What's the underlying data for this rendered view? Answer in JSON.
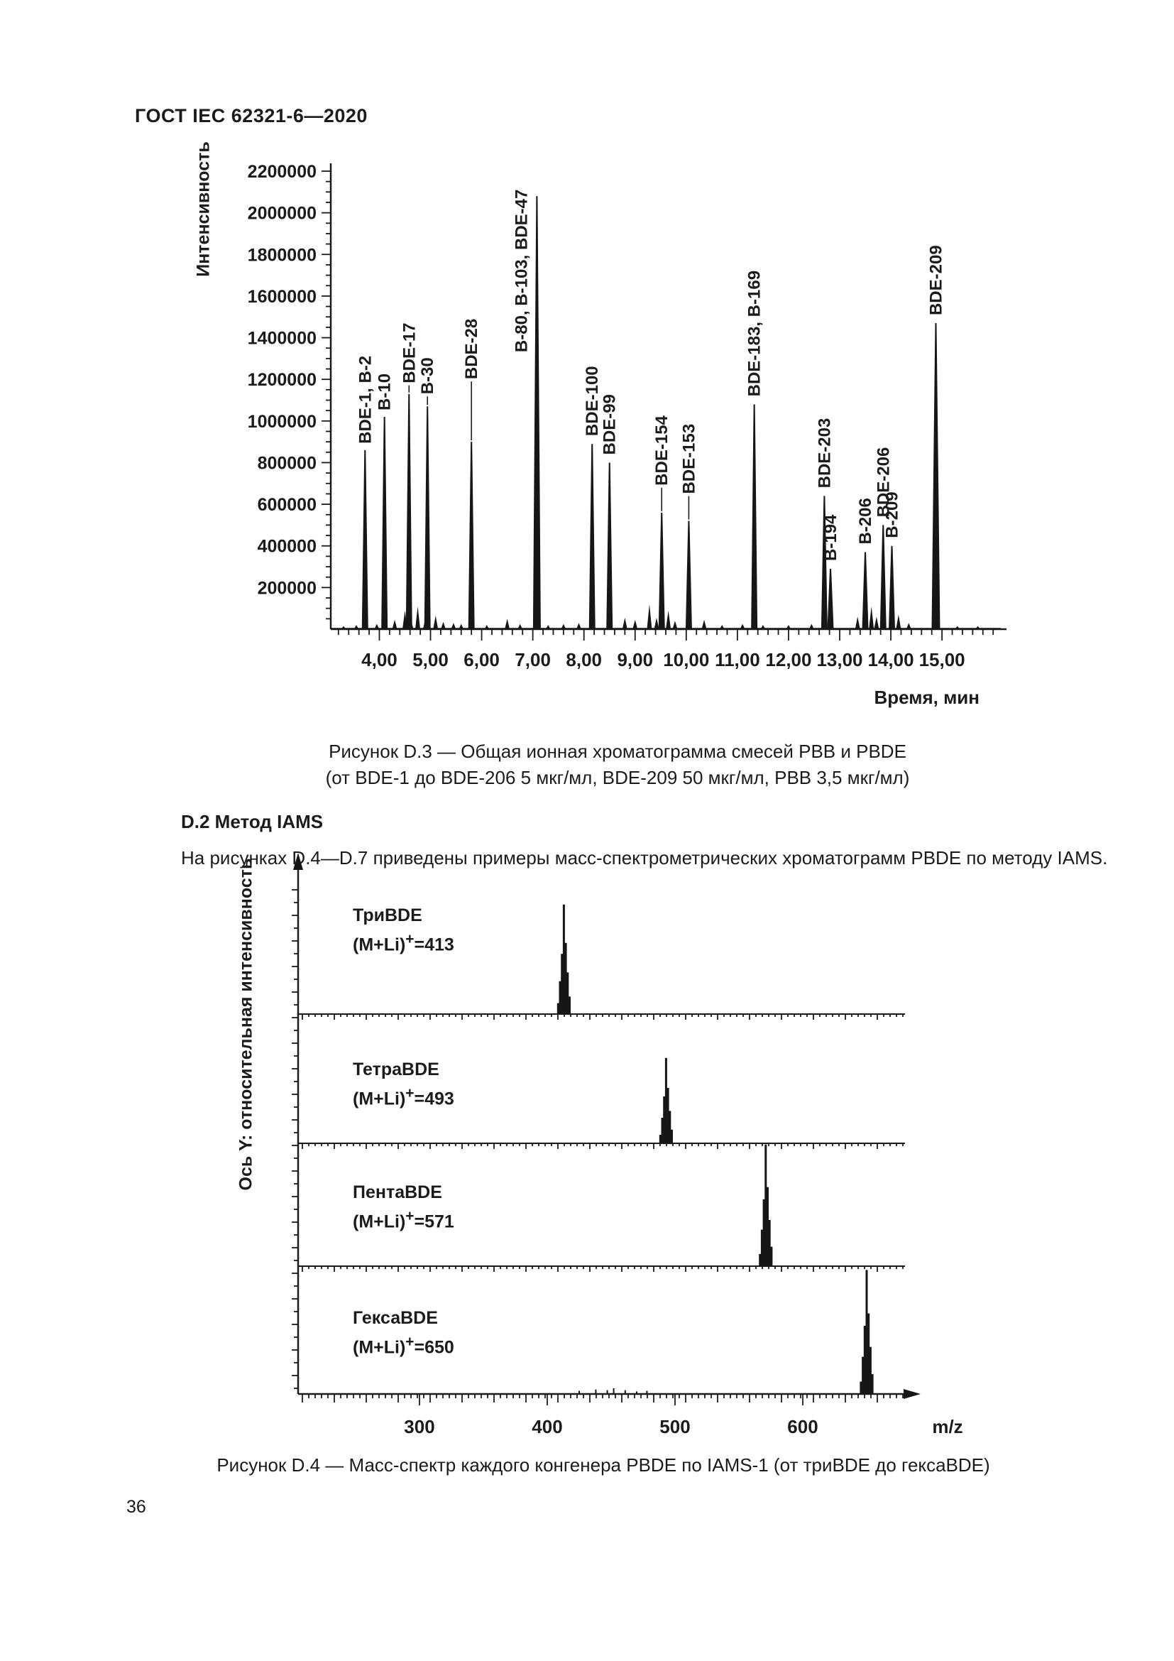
{
  "page": {
    "header": "ГОСТ IEC 62321-6—2020",
    "page_number": "36"
  },
  "figure_d3": {
    "caption_line1": "Рисунок D.3 — Общая ионная хроматограмма смесей PBB и PBDE",
    "caption_line2": "(от BDE-1 до BDE-206 5 мкг/мл, BDE-209 50 мкг/мл, PBB 3,5 мкг/мл)"
  },
  "section_d2": {
    "heading": "D.2 Метод IAMS",
    "body": "На рисунках D.4—D.7 приведены примеры масс-спектрометрических хроматограмм PBDE по методу IAMS."
  },
  "figure_d4": {
    "caption": "Рисунок D.4 — Масс-спектр каждого конгенера PBDE по IAMS-1 (от триBDE до гексаBDE)"
  },
  "chart_data": [
    {
      "type": "line",
      "title": "Общая ионная хроматограмма смесей PBB и PBDE",
      "xlabel": "Время, мин",
      "ylabel": "Интенсивность",
      "xlim": [
        3.05,
        16.15
      ],
      "ylim": [
        0,
        2200000
      ],
      "grid": false,
      "x_major_ticks": [
        4,
        5,
        6,
        7,
        8,
        9,
        10,
        11,
        12,
        13,
        14,
        15
      ],
      "x_tick_labels": [
        "4,00",
        "5,00",
        "6,00",
        "7,00",
        "8,00",
        "9,00",
        "10,00",
        "11,00",
        "12,00",
        "13,00",
        "14,00",
        "15,00"
      ],
      "x_minor_step": 0.2,
      "y_major_ticks": [
        200000,
        400000,
        600000,
        800000,
        1000000,
        1200000,
        1400000,
        1600000,
        1800000,
        2000000,
        2200000
      ],
      "y_tick_labels": [
        "200000",
        "400000",
        "600000",
        "800000",
        "1000000",
        "1200000",
        "1400000",
        "1600000",
        "1800000",
        "2000000",
        "2200000"
      ],
      "y_minor_step": 50000,
      "peaks": [
        {
          "label": "BDE-1, B-2",
          "t": 3.72,
          "intensity": 860000,
          "label_gap": 6
        },
        {
          "label": "B-10",
          "t": 4.1,
          "intensity": 1020000,
          "label_gap": 6
        },
        {
          "label": "BDE-17",
          "t": 4.58,
          "intensity": 1130000,
          "label_gap": 12
        },
        {
          "label": "B-30",
          "t": 4.94,
          "intensity": 1070000,
          "label_gap": 14
        },
        {
          "label": "BDE-28",
          "t": 5.8,
          "intensity": 900000,
          "label_gap": 85
        },
        {
          "label": "B-80, B-103, BDE-47",
          "t": 7.08,
          "intensity": 2080000,
          "label_gap": 6,
          "side": true
        },
        {
          "label": "BDE-100",
          "t": 8.16,
          "intensity": 890000,
          "label_gap": 8
        },
        {
          "label": "BDE-99",
          "t": 8.5,
          "intensity": 800000,
          "label_gap": 8
        },
        {
          "label": "BDE-154",
          "t": 9.52,
          "intensity": 560000,
          "label_gap": 35
        },
        {
          "label": "BDE-153",
          "t": 10.05,
          "intensity": 520000,
          "label_gap": 35
        },
        {
          "label": "BDE-183, B-169",
          "t": 11.33,
          "intensity": 1080000,
          "label_gap": 8
        },
        {
          "label": "BDE-203",
          "t": 12.7,
          "intensity": 640000,
          "label_gap": 8
        },
        {
          "label": "B-194",
          "t": 12.82,
          "intensity": 290000,
          "label_gap": 8
        },
        {
          "label": "B-206",
          "t": 13.5,
          "intensity": 370000,
          "label_gap": 8
        },
        {
          "label": "BDE-206",
          "t": 13.85,
          "intensity": 500000,
          "label_gap": 8
        },
        {
          "label": "B-209",
          "t": 14.02,
          "intensity": 400000,
          "label_gap": 8
        },
        {
          "label": "BDE-209",
          "t": 14.88,
          "intensity": 1470000,
          "label_gap": 8
        }
      ],
      "noise_peaks": [
        [
          3.3,
          15000
        ],
        [
          3.55,
          20000
        ],
        [
          3.95,
          25000
        ],
        [
          4.3,
          45000
        ],
        [
          4.5,
          90000
        ],
        [
          4.62,
          40000
        ],
        [
          4.75,
          110000
        ],
        [
          4.9,
          50000
        ],
        [
          5.1,
          65000
        ],
        [
          5.25,
          35000
        ],
        [
          5.45,
          30000
        ],
        [
          5.6,
          25000
        ],
        [
          6.1,
          20000
        ],
        [
          6.5,
          50000
        ],
        [
          6.75,
          25000
        ],
        [
          7.3,
          20000
        ],
        [
          7.6,
          25000
        ],
        [
          7.9,
          30000
        ],
        [
          8.8,
          55000
        ],
        [
          9.0,
          45000
        ],
        [
          9.28,
          120000
        ],
        [
          9.42,
          55000
        ],
        [
          9.65,
          90000
        ],
        [
          9.78,
          40000
        ],
        [
          10.35,
          45000
        ],
        [
          10.7,
          20000
        ],
        [
          11.1,
          25000
        ],
        [
          11.5,
          20000
        ],
        [
          12.0,
          20000
        ],
        [
          12.45,
          25000
        ],
        [
          13.35,
          60000
        ],
        [
          13.62,
          110000
        ],
        [
          13.72,
          60000
        ],
        [
          14.15,
          70000
        ],
        [
          14.35,
          30000
        ],
        [
          15.3,
          15000
        ],
        [
          15.7,
          15000
        ]
      ]
    },
    {
      "type": "area",
      "title": "Масс-спектр каждого конгенера PBDE по IAMS-1",
      "xlabel": "m/z",
      "ylabel": "Ось Y: относительная интенсивность",
      "xlim": [
        205,
        680
      ],
      "grid": false,
      "x_major_ticks": [
        300,
        400,
        500,
        600
      ],
      "x_tick_labels": [
        "300",
        "400",
        "500",
        "600"
      ],
      "panels": [
        {
          "name": "ТриBDE",
          "formula": "(M+Li)",
          "sup": "+",
          "value": "=413",
          "mz": 413,
          "rel_height": 0.82
        },
        {
          "name": "ТетраBDE",
          "formula": "(M+Li)",
          "sup": "+",
          "value": "=493",
          "mz": 493,
          "rel_height": 0.66
        },
        {
          "name": "ПентаBDE",
          "formula": "(M+Li)",
          "sup": "+",
          "value": "=571",
          "mz": 571,
          "rel_height": 0.99
        },
        {
          "name": "ГексаBDE",
          "formula": "(M+Li)",
          "sup": "+",
          "value": "=650",
          "mz": 650,
          "rel_height": 0.97
        }
      ],
      "cluster_bars": [
        [
          -4.5,
          0.1
        ],
        [
          -3,
          0.3
        ],
        [
          -1.5,
          0.55
        ],
        [
          0,
          1.0
        ],
        [
          1.5,
          0.65
        ],
        [
          3,
          0.38
        ],
        [
          4.5,
          0.16
        ]
      ],
      "panel4_noise": [
        [
          425,
          0.025
        ],
        [
          438,
          0.035
        ],
        [
          447,
          0.03
        ],
        [
          452,
          0.045
        ],
        [
          461,
          0.03
        ],
        [
          470,
          0.02
        ],
        [
          478,
          0.025
        ]
      ]
    }
  ]
}
